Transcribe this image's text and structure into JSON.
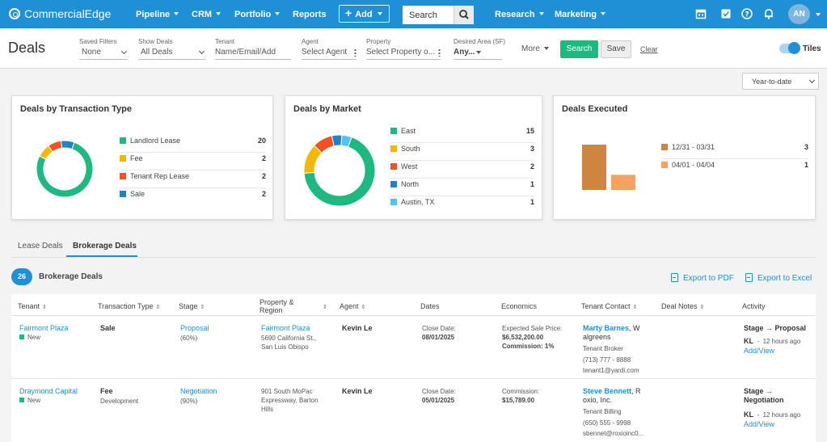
{
  "topnav": {
    "brand": "CommercialEdge",
    "items": [
      "Pipeline",
      "CRM",
      "Portfolio",
      "Reports"
    ],
    "add_label": "Add",
    "search_label": "Search",
    "right_items": [
      "Research",
      "Marketing"
    ],
    "avatar": "AN"
  },
  "filters": {
    "page_title": "Deals",
    "saved_filters": {
      "label": "Saved Filters",
      "value": "None"
    },
    "show_deals": {
      "label": "Show Deals",
      "value": "All Deals"
    },
    "tenant": {
      "label": "Tenant",
      "value": "Name/Email/Add"
    },
    "agent": {
      "label": "Agent",
      "value": "Select Agent"
    },
    "property": {
      "label": "Property",
      "value": "Select Property o..."
    },
    "desired_area": {
      "label": "Desired Area (SF)",
      "value": "Any..."
    },
    "more_label": "More",
    "search_label": "Search",
    "save_label": "Save",
    "clear_label": "Clear",
    "tiles_label": "Tiles",
    "tiles_on": true
  },
  "range": "Year-to-date",
  "cards": {
    "transaction": {
      "title": "Deals by Transaction Type",
      "items": [
        {
          "name": "Landlord Lease",
          "value": 20,
          "color": "#1eb980"
        },
        {
          "name": "Fee",
          "value": 2,
          "color": "#f5b800"
        },
        {
          "name": "Tenant Rep Lease",
          "value": 2,
          "color": "#f4511e"
        },
        {
          "name": "Sale",
          "value": 2,
          "color": "#1f84c7"
        }
      ]
    },
    "market": {
      "title": "Deals by Market",
      "items": [
        {
          "name": "East",
          "value": 15,
          "color": "#1eb980"
        },
        {
          "name": "South",
          "value": 3,
          "color": "#f5b800"
        },
        {
          "name": "West",
          "value": 2,
          "color": "#f4511e"
        },
        {
          "name": "North",
          "value": 1,
          "color": "#1f84c7"
        },
        {
          "name": "Austin, TX",
          "value": 1,
          "color": "#4fc3f7"
        }
      ]
    },
    "executed": {
      "title": "Deals Executed",
      "items": [
        {
          "name": "12/31 - 03/31",
          "value": 3,
          "color": "#cd853f"
        },
        {
          "name": "04/01 - 04/04",
          "value": 1,
          "color": "#f4a261"
        }
      ]
    }
  },
  "tabs": {
    "lease": "Lease Deals",
    "brokerage": "Brokerage Deals",
    "active": "brokerage"
  },
  "summary": {
    "count": "26",
    "label": "Brokerage Deals",
    "export_pdf": "Export to PDF",
    "export_excel": "Export to Excel"
  },
  "table": {
    "headers": {
      "tenant": "Tenant",
      "transaction": "Transaction Type",
      "stage": "Stage",
      "property1": "Property &",
      "property2": "Region",
      "agent": "Agent",
      "dates": "Dates",
      "economics": "Economics",
      "contact": "Tenant Contact",
      "notes": "Deal Notes",
      "activity": "Activity"
    },
    "rows": [
      {
        "tenant": "Fairmont Plaza",
        "status": "New",
        "transaction": "Sale",
        "transaction_sub": "",
        "stage": "Proposal",
        "stage_pct": "(60%)",
        "property_name": "Fairmont Plaza",
        "property_addr": [
          "5690 California St.,",
          "San Luis Obispo"
        ],
        "agent": "Kevin Le",
        "date_label": "Close Date:",
        "date": "08/01/2025",
        "econ": [
          "Expected Sale Price:",
          "$6,532,200.00",
          "Commission: 1%"
        ],
        "contact_name": "Marty Barnes",
        "contact_company": [
          ", W",
          "algreens"
        ],
        "contact_role": "Tenant Broker",
        "contact_phone": "(713) 777 - 8888",
        "contact_email": "tenant1@yardi.com",
        "activity_title": [
          "Stage → Proposal"
        ],
        "activity_initials": "KL",
        "activity_time": "12 hours ago",
        "activity_link": "Add/View"
      },
      {
        "tenant": "Draymond Capital",
        "status": "New",
        "transaction": "Fee",
        "transaction_sub": "Development",
        "stage": "Negotiation",
        "stage_pct": "(90%)",
        "property_name": "",
        "property_addr": [
          "901 South MoPac",
          "Expressway, Barton",
          "Hills"
        ],
        "agent": "Kevin Le",
        "date_label": "Close Date:",
        "date": "05/01/2025",
        "econ": [
          "Commission:",
          "$15,789.00"
        ],
        "contact_name": "Steve Bennett",
        "contact_company": [
          ", R",
          "oxio, Inc."
        ],
        "contact_role": "Tenant Billing",
        "contact_phone": "(650) 555 - 9998",
        "contact_email": "sbennet@roxioinc0...",
        "activity_title": [
          "Stage →",
          "Negotiation"
        ],
        "activity_initials": "KL",
        "activity_time": "12 hours ago",
        "activity_link": "Add/View"
      }
    ]
  }
}
